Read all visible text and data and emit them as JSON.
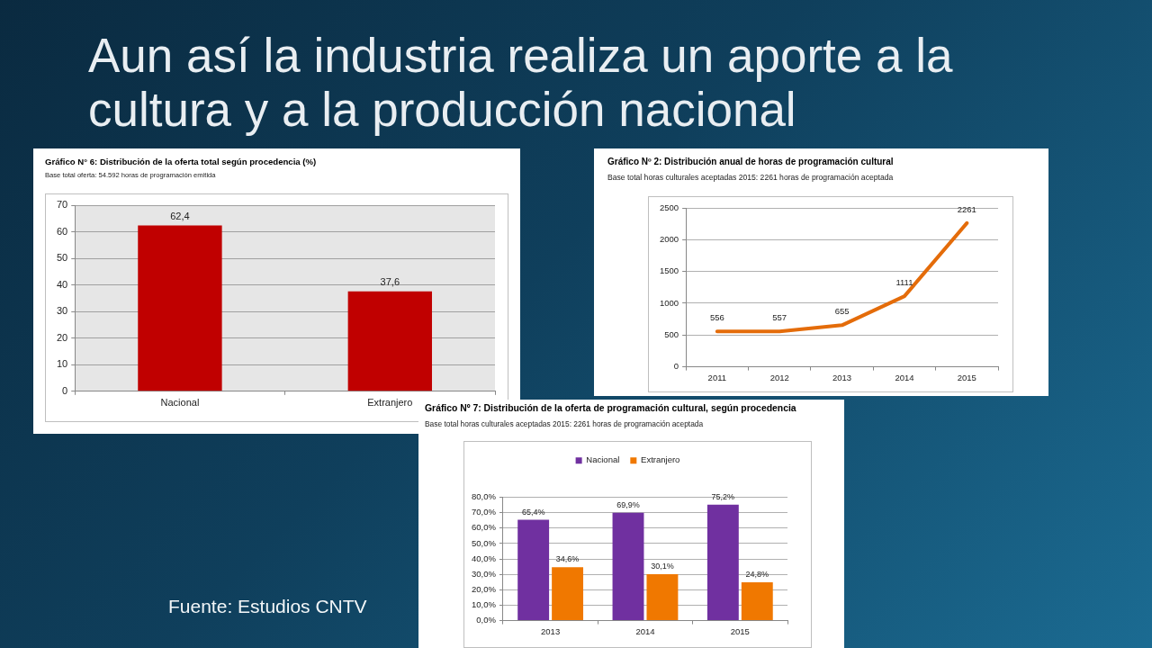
{
  "chart_data": [
    {
      "type": "bar",
      "title": "Gráfico N° 6: Distribución de la oferta total según procedencia (%)",
      "subtitle": "Base total oferta: 54.592 horas de programación emitida",
      "categories": [
        "Nacional",
        "Extranjero"
      ],
      "values": [
        62.4,
        37.6
      ],
      "value_labels": [
        "62,4",
        "37,6"
      ],
      "color": "#c00000",
      "ylim": [
        0,
        70
      ],
      "yticks": [
        0,
        10,
        20,
        30,
        40,
        50,
        60,
        70
      ],
      "grid": "y",
      "annotations": [
        "Aun así la industria realiza un aporte a la cultura y a la producción nacional",
        "Fuente: Estudios CNTV"
      ]
    },
    {
      "type": "line",
      "title": "Gráfico Nº 2: Distribución anual de horas de programación cultural",
      "subtitle": "Base total horas culturales aceptadas 2015: 2261 horas de programación aceptada",
      "categories": [
        "2011",
        "2012",
        "2013",
        "2014",
        "2015"
      ],
      "values": [
        556,
        557,
        655,
        1111,
        2261
      ],
      "color": "#e46c0a",
      "ylim": [
        0,
        2500
      ],
      "yticks": [
        0,
        500,
        1000,
        1500,
        2000,
        2500
      ],
      "grid": "y",
      "data_labels": true
    },
    {
      "type": "bar",
      "title": "Gráfico Nº 7: Distribución de la oferta de programación cultural, según procedencia",
      "subtitle": "Base total horas culturales aceptadas 2015: 2261 horas de programación aceptada",
      "categories": [
        "2013",
        "2014",
        "2015"
      ],
      "series": [
        {
          "name": "Nacional",
          "color": "#7030a0",
          "values": [
            65.4,
            69.9,
            75.2
          ],
          "value_labels": [
            "65,4%",
            "69,9%",
            "75,2%"
          ]
        },
        {
          "name": "Extranjero",
          "color": "#f07800",
          "values": [
            34.6,
            30.1,
            24.8
          ],
          "value_labels": [
            "34,6%",
            "30,1%",
            "24,8%"
          ]
        }
      ],
      "ylim": [
        0,
        80
      ],
      "yticks": [
        {
          "value": 0,
          "label": "0,0%"
        },
        {
          "value": 10,
          "label": "10,0%"
        },
        {
          "value": 20,
          "label": "20,0%"
        },
        {
          "value": 30,
          "label": "30,0%"
        },
        {
          "value": 40,
          "label": "40,0%"
        },
        {
          "value": 50,
          "label": "50,0%"
        },
        {
          "value": 60,
          "label": "60,0%"
        },
        {
          "value": 70,
          "label": "70,0%"
        },
        {
          "value": 80,
          "label": "80,0%"
        }
      ],
      "grid": "y",
      "legend": "top"
    }
  ]
}
